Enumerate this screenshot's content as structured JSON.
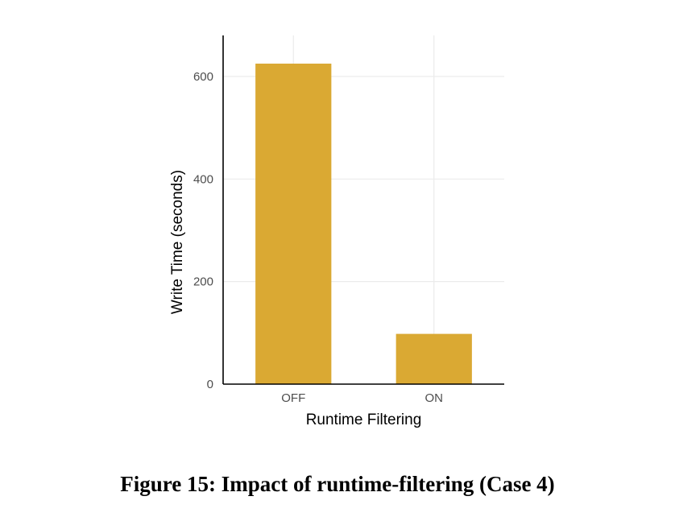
{
  "caption": "Figure 15: Impact of runtime-filtering (Case 4)",
  "colors": {
    "bar": "#DAA933",
    "grid": "#EBEBEB",
    "axis": "#000000"
  },
  "chart_data": {
    "type": "bar",
    "categories": [
      "OFF",
      "ON"
    ],
    "values": [
      625,
      98
    ],
    "xlabel": "Runtime Filtering",
    "ylabel": "Write Time (seconds)",
    "ylim": [
      0,
      680
    ],
    "yticks": [
      0,
      200,
      400,
      600
    ],
    "grid": true,
    "legend": "none"
  }
}
